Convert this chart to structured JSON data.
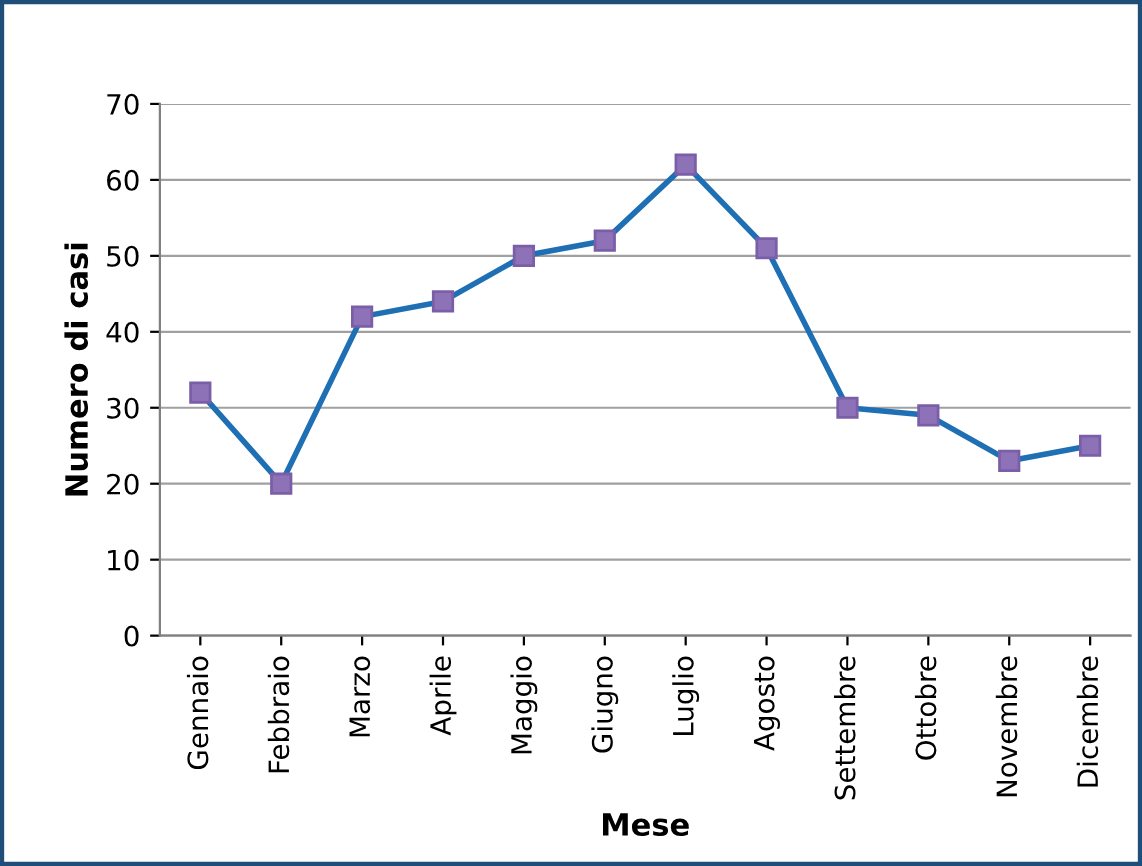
{
  "chart_data": {
    "type": "line",
    "xlabel": "Mese",
    "ylabel": "Numero di casi",
    "categories": [
      "Gennaio",
      "Febbraio",
      "Marzo",
      "Aprile",
      "Maggio",
      "Giugno",
      "Luglio",
      "Agosto",
      "Settembre",
      "Ottobre",
      "Novembre",
      "Dicembre"
    ],
    "series": [
      {
        "color": "#1f6fb5",
        "values": [
          32,
          20,
          42,
          44,
          50,
          52,
          62,
          51,
          30,
          29,
          23,
          25
        ]
      }
    ],
    "marker": "square",
    "line_style": "solid",
    "ylim": [
      0,
      70
    ],
    "yticks": [
      0,
      10,
      20,
      30,
      40,
      50,
      60,
      70
    ],
    "grid": "y",
    "legend": false
  }
}
